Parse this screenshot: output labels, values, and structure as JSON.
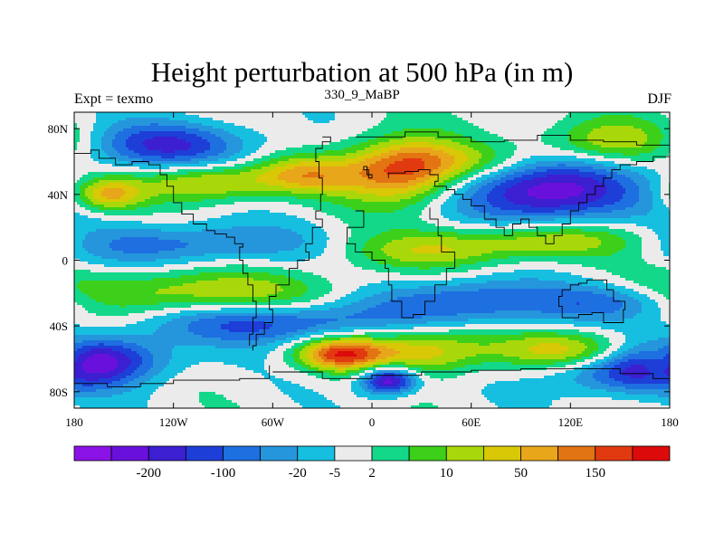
{
  "chart_data": {
    "type": "heatmap",
    "title": "Height perturbation at 500 hPa (in m)",
    "left_label": "Expt = texmo",
    "center_label": "330_9_MaBP",
    "right_label": "DJF",
    "x_range": [
      -180,
      180
    ],
    "y_range": [
      -90,
      90
    ],
    "x_ticks": [
      {
        "value": -180,
        "label": "180"
      },
      {
        "value": -120,
        "label": "120W"
      },
      {
        "value": -60,
        "label": "60W"
      },
      {
        "value": 0,
        "label": "0"
      },
      {
        "value": 60,
        "label": "60E"
      },
      {
        "value": 120,
        "label": "120E"
      },
      {
        "value": 180,
        "label": "180"
      }
    ],
    "y_ticks": [
      {
        "value": 80,
        "label": "80N"
      },
      {
        "value": 40,
        "label": "40N"
      },
      {
        "value": 0,
        "label": "0"
      },
      {
        "value": -40,
        "label": "40S"
      },
      {
        "value": -80,
        "label": "80S"
      }
    ],
    "colorbar": {
      "colors": [
        "#8b12e6",
        "#6a10dc",
        "#3b1fd0",
        "#1e3ed8",
        "#1e6fe0",
        "#2596dc",
        "#16bfe0",
        "#ebebeb",
        "#13d88a",
        "#3cd01a",
        "#a8d80a",
        "#d8c806",
        "#e8a61a",
        "#e27412",
        "#e23a10",
        "#dc0a0a"
      ],
      "labels": [
        {
          "after_index": 1,
          "text": "-200"
        },
        {
          "after_index": 3,
          "text": "-100"
        },
        {
          "after_index": 5,
          "text": "-20"
        },
        {
          "after_index": 6,
          "text": "-5"
        },
        {
          "after_index": 7,
          "text": "2"
        },
        {
          "after_index": 9,
          "text": "10"
        },
        {
          "after_index": 11,
          "text": "50"
        },
        {
          "after_index": 13,
          "text": "150"
        }
      ]
    },
    "field": {
      "background_level": 7,
      "features": [
        {
          "lon": -125,
          "lat": 70,
          "slon": 38,
          "slat": 10,
          "amp": -4.5
        },
        {
          "lon": -100,
          "lat": 47,
          "slon": 28,
          "slat": 8,
          "amp": 4.2
        },
        {
          "lon": -40,
          "lat": 52,
          "slon": 22,
          "slat": 8,
          "amp": 4.2
        },
        {
          "lon": 18,
          "lat": 54,
          "slon": 25,
          "slat": 14,
          "amp": 6.8
        },
        {
          "lon": 105,
          "lat": 42,
          "slon": 38,
          "slat": 14,
          "amp": -6.5
        },
        {
          "lon": 145,
          "lat": 72,
          "slon": 30,
          "slat": 10,
          "amp": 3.8
        },
        {
          "lon": -160,
          "lat": 40,
          "slon": 15,
          "slat": 7,
          "amp": 4.5
        },
        {
          "lon": 55,
          "lat": 60,
          "slon": 30,
          "slat": 8,
          "amp": 2.5
        },
        {
          "lon": -120,
          "lat": 10,
          "slon": 60,
          "slat": 9,
          "amp": -3.2
        },
        {
          "lon": 110,
          "lat": 12,
          "slon": 50,
          "slat": 8,
          "amp": 3.6
        },
        {
          "lon": 30,
          "lat": 5,
          "slon": 40,
          "slat": 8,
          "amp": 2.5
        },
        {
          "lon": -110,
          "lat": -20,
          "slon": 70,
          "slat": 10,
          "amp": 3.5
        },
        {
          "lon": 60,
          "lat": -25,
          "slon": 45,
          "slat": 10,
          "amp": -4
        },
        {
          "lon": 150,
          "lat": -25,
          "slon": 30,
          "slat": 8,
          "amp": -3
        },
        {
          "lon": -60,
          "lat": -38,
          "slon": 50,
          "slat": 9,
          "amp": -4.2
        },
        {
          "lon": 30,
          "lat": -55,
          "slon": 30,
          "slat": 10,
          "amp": 4.5
        },
        {
          "lon": -20,
          "lat": -57,
          "slon": 18,
          "slat": 7,
          "amp": 6.4
        },
        {
          "lon": 120,
          "lat": -55,
          "slon": 30,
          "slat": 8,
          "amp": 4.2
        },
        {
          "lon": -165,
          "lat": -60,
          "slon": 30,
          "slat": 10,
          "amp": -5
        },
        {
          "lon": 155,
          "lat": -68,
          "slon": 35,
          "slat": 10,
          "amp": -4
        },
        {
          "lon": 10,
          "lat": -73,
          "slon": 12,
          "slat": 6,
          "amp": -7
        },
        {
          "lon": 175,
          "lat": -62,
          "slon": 10,
          "slat": 8,
          "amp": 3
        }
      ]
    },
    "coastlines": [
      [
        [
          -30,
          75
        ],
        [
          -25,
          72
        ],
        [
          -30,
          68
        ],
        [
          -34,
          60
        ],
        [
          -32,
          50
        ],
        [
          -30,
          40
        ],
        [
          -31,
          30
        ],
        [
          -34,
          25
        ],
        [
          -30,
          20
        ],
        [
          -36,
          10
        ],
        [
          -40,
          5
        ],
        [
          -38,
          0
        ],
        [
          -45,
          -5
        ],
        [
          -50,
          -15
        ],
        [
          -58,
          -22
        ],
        [
          -62,
          -30
        ],
        [
          -60,
          -38
        ],
        [
          -65,
          -45
        ],
        [
          -70,
          -52
        ],
        [
          -72,
          -55
        ]
      ],
      [
        [
          -10,
          30
        ],
        [
          -5,
          20
        ],
        [
          -15,
          10
        ],
        [
          -10,
          5
        ],
        [
          0,
          0
        ],
        [
          8,
          -5
        ],
        [
          10,
          -15
        ],
        [
          12,
          -25
        ],
        [
          18,
          -35
        ],
        [
          25,
          -33
        ],
        [
          32,
          -25
        ],
        [
          38,
          -15
        ],
        [
          45,
          -5
        ],
        [
          50,
          5
        ],
        [
          42,
          15
        ],
        [
          40,
          25
        ],
        [
          35,
          32
        ]
      ],
      [
        [
          10,
          50
        ],
        [
          10,
          53
        ],
        [
          20,
          54
        ],
        [
          28,
          55
        ],
        [
          35,
          52
        ],
        [
          40,
          48
        ],
        [
          38,
          45
        ],
        [
          45,
          43
        ],
        [
          50,
          40
        ],
        [
          55,
          37
        ],
        [
          60,
          33
        ],
        [
          68,
          25
        ],
        [
          75,
          20
        ],
        [
          80,
          15
        ],
        [
          85,
          22
        ],
        [
          90,
          25
        ],
        [
          95,
          20
        ],
        [
          100,
          15
        ],
        [
          105,
          10
        ],
        [
          110,
          15
        ],
        [
          115,
          22
        ],
        [
          120,
          30
        ],
        [
          125,
          35
        ],
        [
          130,
          40
        ],
        [
          135,
          45
        ],
        [
          140,
          50
        ],
        [
          145,
          55
        ],
        [
          150,
          58
        ],
        [
          160,
          60
        ],
        [
          170,
          63
        ],
        [
          180,
          65
        ]
      ],
      [
        [
          -180,
          65
        ],
        [
          -170,
          67
        ],
        [
          -165,
          62
        ],
        [
          -155,
          58
        ],
        [
          -145,
          60
        ],
        [
          -135,
          58
        ],
        [
          -128,
          52
        ],
        [
          -124,
          45
        ],
        [
          -120,
          35
        ],
        [
          -115,
          28
        ],
        [
          -108,
          22
        ],
        [
          -100,
          18
        ],
        [
          -95,
          16
        ],
        [
          -88,
          14
        ],
        [
          -83,
          10
        ],
        [
          -78,
          8
        ],
        [
          -80,
          0
        ],
        [
          -78,
          -8
        ],
        [
          -75,
          -15
        ],
        [
          -72,
          -25
        ],
        [
          -70,
          -35
        ],
        [
          -72,
          -45
        ],
        [
          -74,
          -52
        ]
      ],
      [
        [
          115,
          -22
        ],
        [
          113,
          -28
        ],
        [
          115,
          -35
        ],
        [
          125,
          -33
        ],
        [
          133,
          -32
        ],
        [
          140,
          -38
        ],
        [
          148,
          -38
        ],
        [
          152,
          -30
        ],
        [
          153,
          -25
        ],
        [
          146,
          -18
        ],
        [
          142,
          -12
        ],
        [
          136,
          -12
        ],
        [
          130,
          -14
        ],
        [
          125,
          -15
        ],
        [
          120,
          -18
        ],
        [
          115,
          -22
        ]
      ],
      [
        [
          -60,
          -68
        ],
        [
          -30,
          -72
        ],
        [
          0,
          -70
        ],
        [
          30,
          -68
        ],
        [
          60,
          -67
        ],
        [
          90,
          -66
        ],
        [
          120,
          -66
        ],
        [
          150,
          -69
        ],
        [
          170,
          -72
        ],
        [
          180,
          -75
        ]
      ],
      [
        [
          -180,
          -75
        ],
        [
          -160,
          -77
        ],
        [
          -140,
          -75
        ],
        [
          -120,
          -73
        ],
        [
          -100,
          -73
        ],
        [
          -80,
          -72
        ],
        [
          -62,
          -64
        ]
      ],
      [
        [
          -2,
          50
        ],
        [
          0,
          52
        ],
        [
          -3,
          57
        ],
        [
          -5,
          55
        ],
        [
          -2,
          50
        ]
      ],
      [
        [
          -10,
          75
        ],
        [
          20,
          78
        ],
        [
          40,
          75
        ],
        [
          60,
          72
        ],
        [
          80,
          73
        ],
        [
          100,
          76
        ],
        [
          120,
          73
        ],
        [
          140,
          72
        ],
        [
          160,
          70
        ],
        [
          180,
          69
        ]
      ]
    ]
  }
}
